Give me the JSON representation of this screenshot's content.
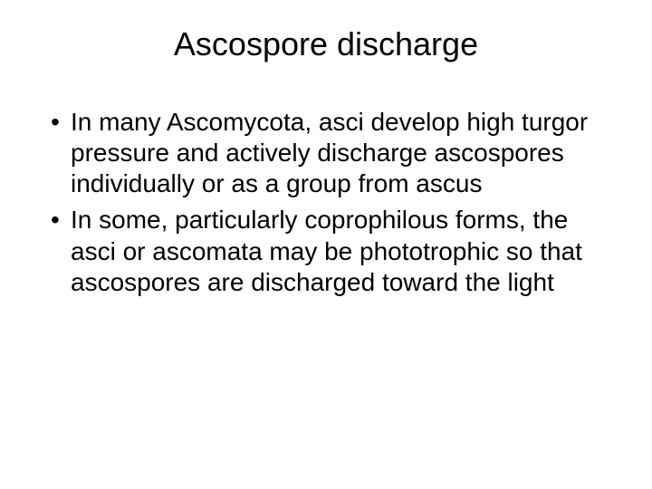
{
  "slide": {
    "title": "Ascospore discharge",
    "title_fontsize": 36,
    "body_fontsize": 28,
    "body_lineheight": 1.22,
    "text_color": "#000000",
    "background_color": "#ffffff",
    "bullets": [
      "In many Ascomycota, asci develop high turgor pressure and actively discharge ascospores individually or as a group from ascus",
      "In some, particularly coprophilous forms, the asci or ascomata may be phototrophic so that ascospores are discharged toward the light"
    ]
  }
}
